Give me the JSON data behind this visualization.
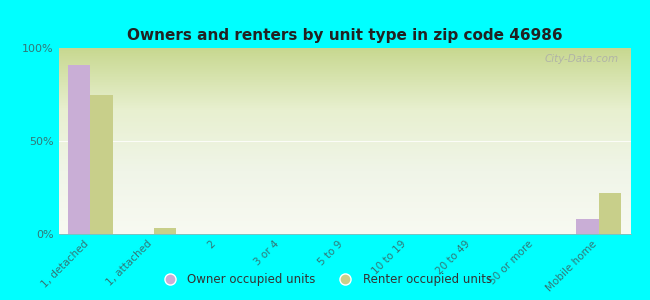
{
  "title": "Owners and renters by unit type in zip code 46986",
  "categories": [
    "1, detached",
    "1, attached",
    "2",
    "3 or 4",
    "5 to 9",
    "10 to 19",
    "20 to 49",
    "50 or more",
    "Mobile home"
  ],
  "owner_values": [
    91,
    0,
    0,
    0,
    0,
    0,
    0,
    0,
    8
  ],
  "renter_values": [
    75,
    3,
    0,
    0,
    0,
    0,
    0,
    0,
    22
  ],
  "owner_color": "#c9aed6",
  "renter_color": "#c8cf8a",
  "background_color": "#00ffff",
  "ylim": [
    0,
    100
  ],
  "yticks": [
    0,
    50,
    100
  ],
  "ytick_labels": [
    "0%",
    "50%",
    "100%"
  ],
  "bar_width": 0.35,
  "legend_owner": "Owner occupied units",
  "legend_renter": "Renter occupied units",
  "watermark": "City-Data.com",
  "tick_color": "#337777",
  "title_color": "#222222",
  "grid_color": "#cccccc"
}
